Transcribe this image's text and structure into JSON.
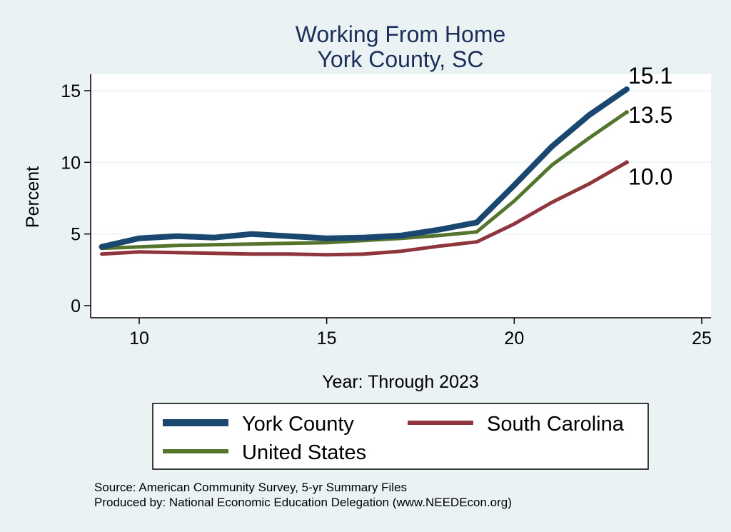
{
  "chart_data": {
    "type": "line",
    "title": [
      "Working From Home",
      "York County, SC"
    ],
    "xlabel": "Year: Through 2023",
    "ylabel": "Percent",
    "xlim": [
      9,
      25
    ],
    "ylim": [
      0,
      15
    ],
    "xticks": [
      10,
      15,
      20,
      25
    ],
    "yticks": [
      0,
      5,
      10,
      15
    ],
    "grid": "horizontal",
    "legend_position": "bottom",
    "series": [
      {
        "name": "York County",
        "color": "#1a476f",
        "x": [
          9,
          10,
          11,
          12,
          13,
          14,
          15,
          16,
          17,
          18,
          19,
          20,
          21,
          22,
          23
        ],
        "values": [
          4.1,
          4.7,
          4.85,
          4.75,
          5.0,
          4.85,
          4.7,
          4.75,
          4.9,
          5.3,
          5.8,
          8.4,
          11.1,
          13.3,
          15.1
        ],
        "end_label": "15.1"
      },
      {
        "name": "United States",
        "color": "#55752f",
        "x": [
          9,
          10,
          11,
          12,
          13,
          14,
          15,
          16,
          17,
          18,
          19,
          20,
          21,
          22,
          23
        ],
        "values": [
          4.0,
          4.1,
          4.2,
          4.25,
          4.3,
          4.35,
          4.4,
          4.55,
          4.7,
          4.9,
          5.15,
          7.3,
          9.8,
          11.7,
          13.5
        ],
        "end_label": "13.5"
      },
      {
        "name": "South Carolina",
        "color": "#90353b",
        "x": [
          9,
          10,
          11,
          12,
          13,
          14,
          15,
          16,
          17,
          18,
          19,
          20,
          21,
          22,
          23
        ],
        "values": [
          3.6,
          3.75,
          3.7,
          3.65,
          3.6,
          3.6,
          3.55,
          3.6,
          3.8,
          4.15,
          4.45,
          5.7,
          7.2,
          8.5,
          10.0
        ],
        "end_label": "10.0"
      }
    ],
    "legend": [
      {
        "name": "York County",
        "color": "#1a476f"
      },
      {
        "name": "South Carolina",
        "color": "#90353b"
      },
      {
        "name": "United States",
        "color": "#55752f"
      }
    ]
  },
  "notes": {
    "source": "Source: American Community Survey, 5-yr Summary Files",
    "produced_by": "Produced by: National Economic Education Delegation (www.NEEDEcon.org)"
  }
}
